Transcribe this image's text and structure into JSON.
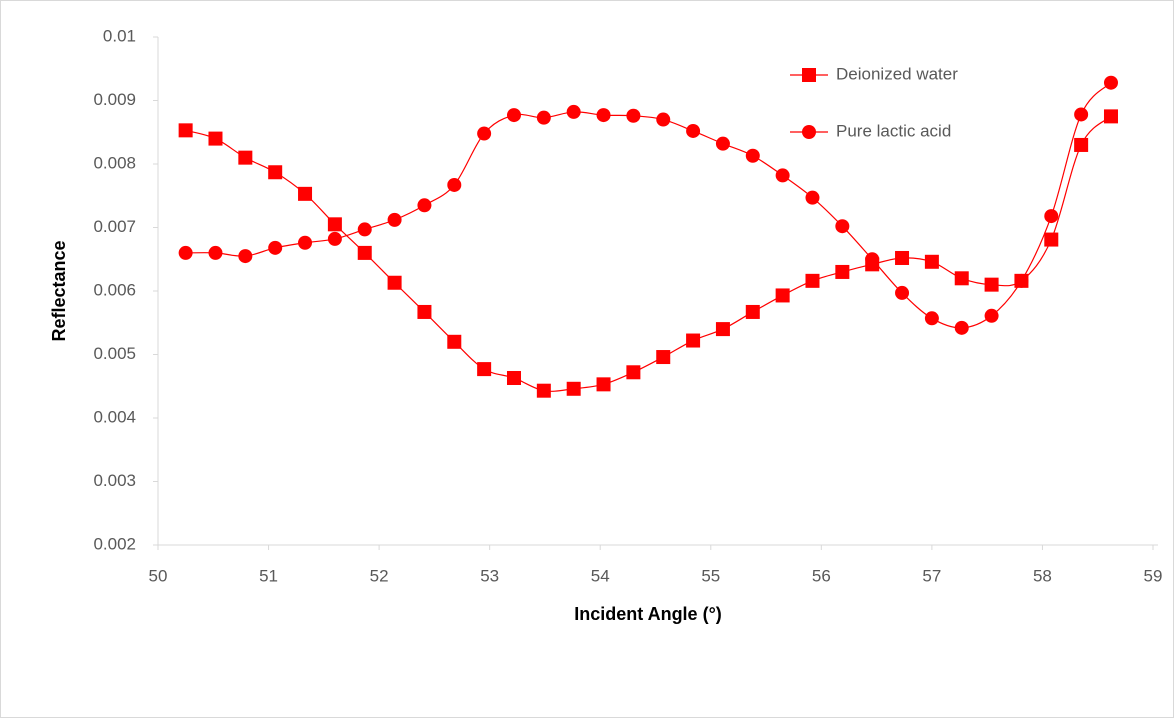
{
  "chart_data": {
    "type": "line",
    "x_label": "Incident Angle (°)",
    "y_label": "Reflectance",
    "x": [
      50.25,
      50.52,
      50.79,
      51.06,
      51.33,
      51.6,
      51.87,
      52.14,
      52.41,
      52.68,
      52.95,
      53.22,
      53.49,
      53.76,
      54.03,
      54.3,
      54.57,
      54.84,
      55.11,
      55.38,
      55.65,
      55.92,
      56.19,
      56.46,
      56.73,
      57.0,
      57.27,
      57.54,
      57.81,
      58.08,
      58.35,
      58.62
    ],
    "series": [
      {
        "name": "Deionized water",
        "color": "#ff0000",
        "marker": "square",
        "values": [
          0.00853,
          0.0084,
          0.0081,
          0.00787,
          0.00753,
          0.00705,
          0.0066,
          0.00613,
          0.00567,
          0.0052,
          0.00477,
          0.00463,
          0.00443,
          0.00446,
          0.00453,
          0.00472,
          0.00496,
          0.00522,
          0.0054,
          0.00567,
          0.00593,
          0.00616,
          0.0063,
          0.00642,
          0.00652,
          0.00646,
          0.0062,
          0.0061,
          0.00616,
          0.00681,
          0.0083,
          0.00875
        ]
      },
      {
        "name": "Pure lactic acid",
        "color": "#ff0000",
        "marker": "circle",
        "values": [
          0.0066,
          0.0066,
          0.00655,
          0.00668,
          0.00676,
          0.00682,
          0.00697,
          0.00712,
          0.00735,
          0.00767,
          0.00848,
          0.00877,
          0.00873,
          0.00882,
          0.00877,
          0.00876,
          0.0087,
          0.00852,
          0.00832,
          0.00813,
          0.00782,
          0.00747,
          0.00702,
          0.0065,
          0.00597,
          0.00557,
          0.00542,
          0.00561,
          0.00616,
          0.00718,
          0.00878,
          0.00928
        ]
      }
    ],
    "xlim": [
      50,
      59
    ],
    "xticks": [
      50,
      51,
      52,
      53,
      54,
      55,
      56,
      57,
      58,
      59
    ],
    "ylim": [
      0.002,
      0.01
    ],
    "yticks": [
      0.002,
      0.003,
      0.004,
      0.005,
      0.006,
      0.007,
      0.008,
      0.009,
      0.01
    ],
    "grid": false,
    "legend": "upper right"
  }
}
